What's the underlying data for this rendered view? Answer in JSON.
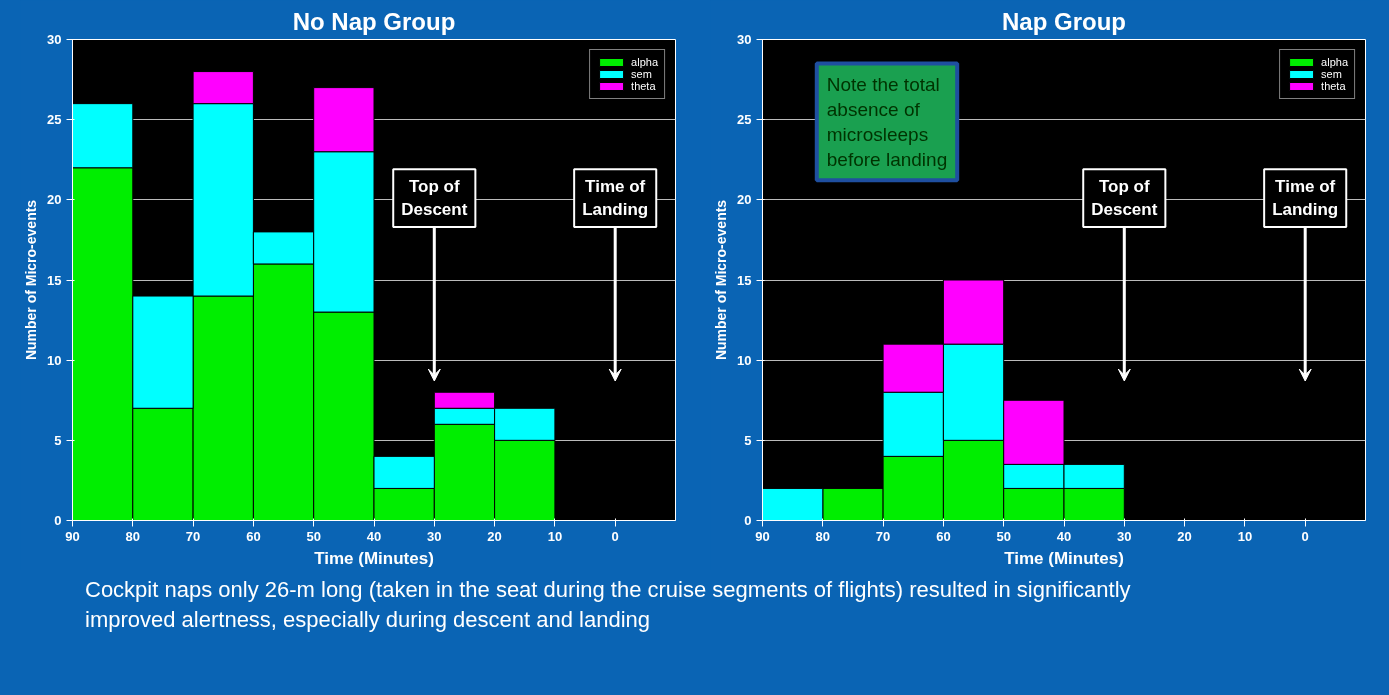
{
  "chart_data": [
    {
      "type": "bar",
      "stacked": true,
      "title": "No Nap Group",
      "xlabel": "Time (Minutes)",
      "ylabel": "Number of Micro-events",
      "x": [
        85,
        75,
        65,
        55,
        45,
        35,
        25,
        15
      ],
      "series": [
        {
          "name": "alpha",
          "color": "#00ee00",
          "values": [
            22,
            7,
            14,
            16,
            13,
            2,
            6,
            5
          ]
        },
        {
          "name": "sem",
          "color": "#00ffff",
          "values": [
            4,
            7,
            12,
            2,
            10,
            2,
            1,
            2
          ]
        },
        {
          "name": "theta",
          "color": "#ff00ff",
          "values": [
            0,
            0,
            2,
            0,
            4,
            0,
            1,
            0
          ]
        }
      ],
      "xlim": [
        90,
        -10
      ],
      "xticks": [
        90,
        80,
        70,
        60,
        50,
        40,
        30,
        20,
        10,
        0
      ],
      "ylim": [
        0,
        30
      ],
      "yticks": [
        0,
        5,
        10,
        15,
        20,
        25,
        30
      ],
      "grid": "y",
      "legend": "top right",
      "annotations": [
        "Top of Descent",
        "Time of Landing"
      ]
    },
    {
      "type": "bar",
      "stacked": true,
      "title": "Nap Group",
      "xlabel": "Time (Minutes)",
      "ylabel": "Number of Micro-events",
      "x": [
        85,
        75,
        65,
        55,
        45,
        35
      ],
      "series": [
        {
          "name": "alpha",
          "color": "#00ee00",
          "values": [
            0,
            2,
            4,
            5,
            2,
            2
          ]
        },
        {
          "name": "sem",
          "color": "#00ffff",
          "values": [
            2,
            0,
            4,
            6,
            1.5,
            1.5
          ]
        },
        {
          "name": "theta",
          "color": "#ff00ff",
          "values": [
            0,
            0,
            3,
            4,
            4,
            0
          ]
        }
      ],
      "xlim": [
        90,
        -10
      ],
      "xticks": [
        90,
        80,
        70,
        60,
        50,
        40,
        30,
        20,
        10,
        0
      ],
      "ylim": [
        0,
        30
      ],
      "yticks": [
        0,
        5,
        10,
        15,
        20,
        25,
        30
      ],
      "grid": "y",
      "legend": "top right",
      "annotations": [
        "Note the total absence of microsleeps before landing",
        "Top of Descent",
        "Time of Landing"
      ]
    },
    {
      "type": "other",
      "annotations": [
        "Cockpit naps only 26-m long (taken in the seat during the cruise segments of flights) resulted in significantly improved alertness, especially during descent and landing"
      ]
    }
  ]
}
